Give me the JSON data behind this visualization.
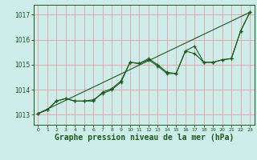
{
  "background_color": "#ceecea",
  "grid_color": "#e8a0a0",
  "line_color": "#1a5c1a",
  "xlabel": "Graphe pression niveau de la mer (hPa)",
  "xlabel_fontsize": 7,
  "ylabel_ticks": [
    1013,
    1014,
    1015,
    1016,
    1017
  ],
  "xlim": [
    -0.5,
    23.5
  ],
  "ylim": [
    1012.6,
    1017.4
  ],
  "xticks": [
    0,
    1,
    2,
    3,
    4,
    5,
    6,
    7,
    8,
    9,
    10,
    11,
    12,
    13,
    14,
    15,
    16,
    17,
    18,
    19,
    20,
    21,
    22,
    23
  ],
  "series1_x": [
    0,
    1,
    2,
    3,
    4,
    5,
    6,
    7,
    8,
    9,
    10,
    11,
    12,
    13,
    14,
    15,
    16,
    17,
    18,
    19,
    20,
    21,
    22,
    23
  ],
  "series1_y": [
    1013.05,
    1013.2,
    1013.55,
    1013.65,
    1013.55,
    1013.55,
    1013.55,
    1013.9,
    1014.05,
    1014.35,
    1015.1,
    1015.05,
    1015.25,
    1015.0,
    1014.7,
    1014.65,
    1015.55,
    1015.45,
    1015.1,
    1015.1,
    1015.2,
    1015.25,
    1016.35,
    1017.1
  ],
  "series2_x": [
    0,
    1,
    2,
    3,
    4,
    5,
    6,
    7,
    8,
    9,
    10,
    11,
    12,
    13,
    14,
    15,
    16,
    17,
    18,
    19,
    20,
    21,
    22,
    23
  ],
  "series2_y": [
    1013.05,
    1013.2,
    1013.55,
    1013.65,
    1013.55,
    1013.55,
    1013.6,
    1013.85,
    1014.0,
    1014.3,
    1015.1,
    1015.05,
    1015.2,
    1014.95,
    1014.65,
    1014.65,
    1015.55,
    1015.75,
    1015.1,
    1015.1,
    1015.2,
    1015.25,
    1016.35,
    1017.1
  ],
  "trend_x": [
    0,
    23
  ],
  "trend_y": [
    1013.05,
    1017.1
  ]
}
